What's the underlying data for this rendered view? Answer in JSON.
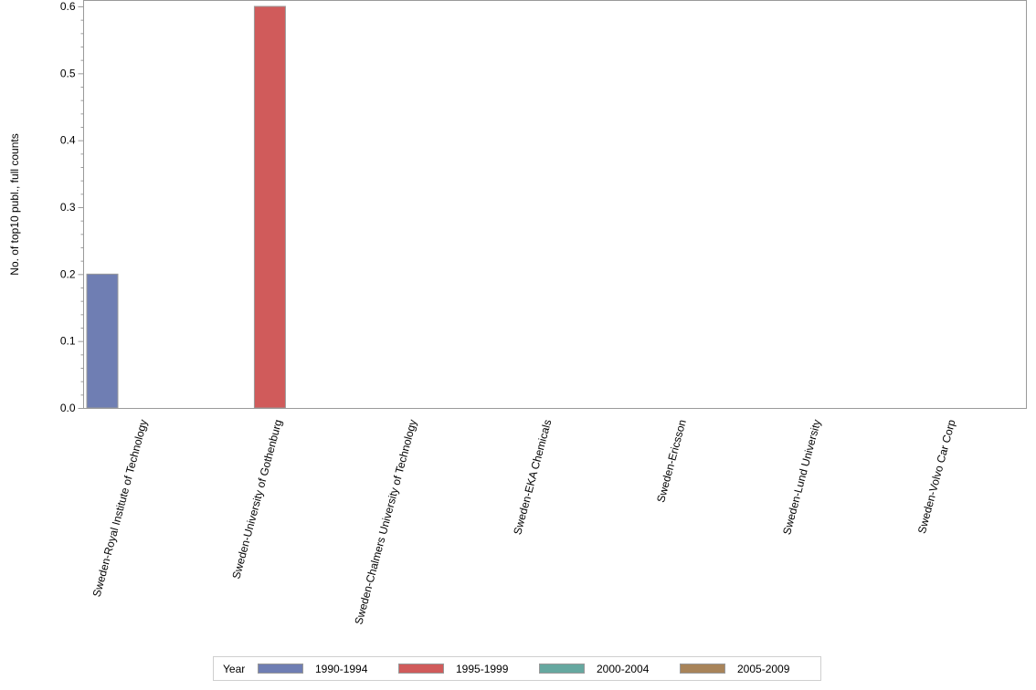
{
  "chart_data": {
    "type": "bar",
    "title": "",
    "xlabel": "",
    "ylabel": "No. of top10 publ., full counts",
    "ylim": [
      0,
      0.6
    ],
    "yticks": [
      "0.0",
      "0.1",
      "0.2",
      "0.3",
      "0.4",
      "0.5",
      "0.6"
    ],
    "categories": [
      "Sweden-Royal Institute of Technology",
      "Sweden-University of Gothenburg",
      "Sweden-Chalmers University of Technology",
      "Sweden-EKA Chemicals",
      "Sweden-Ericsson",
      "Sweden-Lund University",
      "Sweden-Volvo Car Corp"
    ],
    "series": [
      {
        "name": "1990-1994",
        "color": "#6f7eb3",
        "values": [
          0.2,
          0,
          0,
          0,
          0,
          0,
          0
        ]
      },
      {
        "name": "1995-1999",
        "color": "#d05b5b",
        "values": [
          0,
          0.6,
          0,
          0,
          0,
          0,
          0
        ]
      },
      {
        "name": "2000-2004",
        "color": "#66a8a0",
        "values": [
          0,
          0,
          0,
          0,
          0,
          0,
          0
        ]
      },
      {
        "name": "2005-2009",
        "color": "#a8845a",
        "values": [
          0,
          0,
          0,
          0,
          0,
          0,
          0
        ]
      }
    ],
    "legend": {
      "title": "Year",
      "position": "bottom"
    },
    "grid": false
  }
}
